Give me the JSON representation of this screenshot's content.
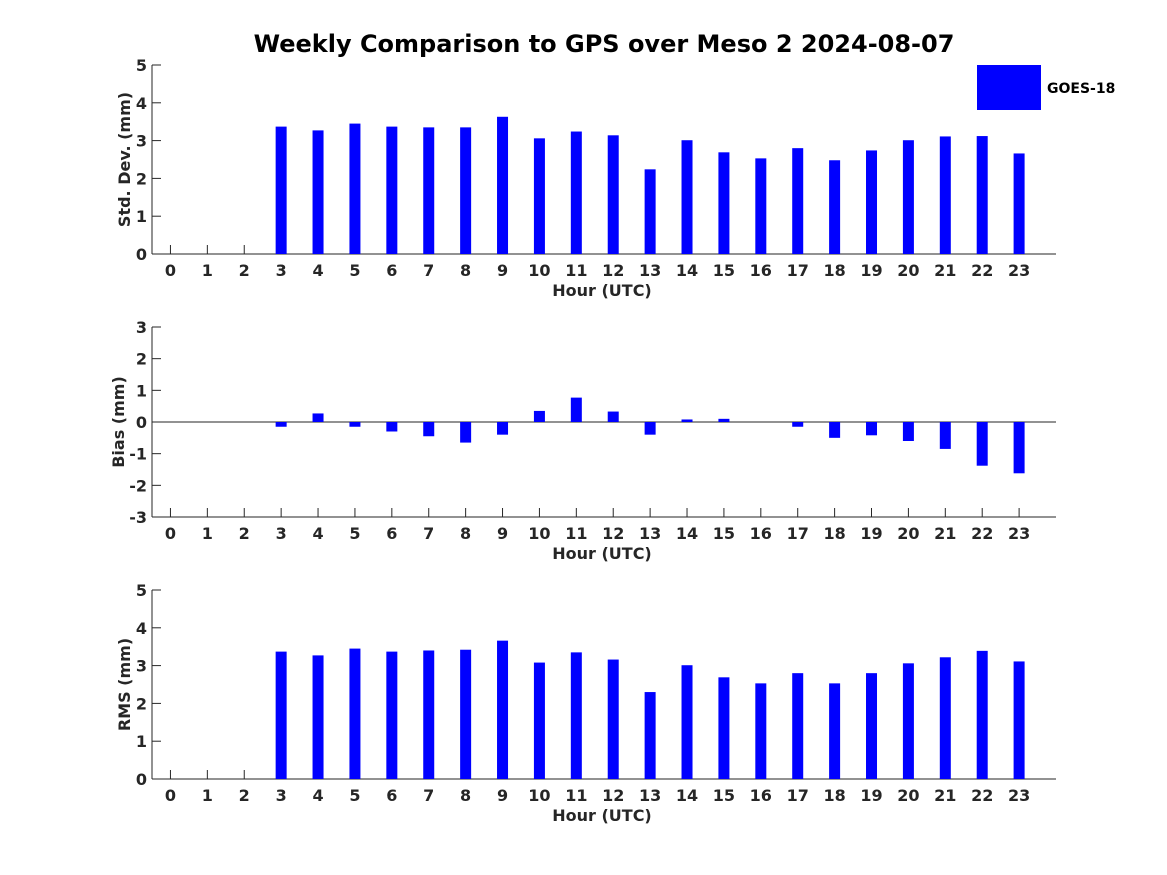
{
  "title": "Weekly Comparison to GPS over Meso 2 2024-08-07",
  "legend": {
    "label": "GOES-18",
    "color": "#0000ff"
  },
  "chart_data": [
    {
      "type": "bar",
      "xlabel": "Hour (UTC)",
      "ylabel": "Std. Dev. (mm)",
      "ylim": [
        0,
        5
      ],
      "yticks": [
        0,
        1,
        2,
        3,
        4,
        5
      ],
      "categories": [
        "0",
        "1",
        "2",
        "3",
        "4",
        "5",
        "6",
        "7",
        "8",
        "9",
        "10",
        "11",
        "12",
        "13",
        "14",
        "15",
        "16",
        "17",
        "18",
        "19",
        "20",
        "21",
        "22",
        "23"
      ],
      "series": [
        {
          "name": "GOES-18",
          "color": "#0000ff",
          "values": [
            0,
            0,
            0,
            3.37,
            3.27,
            3.45,
            3.37,
            3.35,
            3.35,
            3.63,
            3.06,
            3.24,
            3.14,
            2.24,
            3.01,
            2.69,
            2.53,
            2.8,
            2.48,
            2.74,
            3.01,
            3.11,
            3.12,
            2.66
          ]
        }
      ]
    },
    {
      "type": "bar",
      "xlabel": "Hour (UTC)",
      "ylabel": "Bias (mm)",
      "ylim": [
        -3,
        3
      ],
      "yticks": [
        -3,
        -2,
        -1,
        0,
        1,
        2,
        3
      ],
      "categories": [
        "0",
        "1",
        "2",
        "3",
        "4",
        "5",
        "6",
        "7",
        "8",
        "9",
        "10",
        "11",
        "12",
        "13",
        "14",
        "15",
        "16",
        "17",
        "18",
        "19",
        "20",
        "21",
        "22",
        "23"
      ],
      "series": [
        {
          "name": "GOES-18",
          "color": "#0000ff",
          "values": [
            0,
            0,
            0,
            -0.15,
            0.27,
            -0.15,
            -0.3,
            -0.45,
            -0.65,
            -0.4,
            0.35,
            0.77,
            0.33,
            -0.4,
            0.08,
            0.1,
            0,
            -0.15,
            -0.5,
            -0.42,
            -0.6,
            -0.85,
            -1.38,
            -1.62
          ]
        }
      ]
    },
    {
      "type": "bar",
      "xlabel": "Hour (UTC)",
      "ylabel": "RMS (mm)",
      "ylim": [
        0,
        5
      ],
      "yticks": [
        0,
        1,
        2,
        3,
        4,
        5
      ],
      "categories": [
        "0",
        "1",
        "2",
        "3",
        "4",
        "5",
        "6",
        "7",
        "8",
        "9",
        "10",
        "11",
        "12",
        "13",
        "14",
        "15",
        "16",
        "17",
        "18",
        "19",
        "20",
        "21",
        "22",
        "23"
      ],
      "series": [
        {
          "name": "GOES-18",
          "color": "#0000ff",
          "values": [
            0,
            0,
            0,
            3.37,
            3.27,
            3.45,
            3.37,
            3.4,
            3.42,
            3.66,
            3.08,
            3.35,
            3.16,
            2.3,
            3.01,
            2.69,
            2.53,
            2.8,
            2.53,
            2.8,
            3.06,
            3.22,
            3.39,
            3.11
          ]
        }
      ]
    }
  ]
}
